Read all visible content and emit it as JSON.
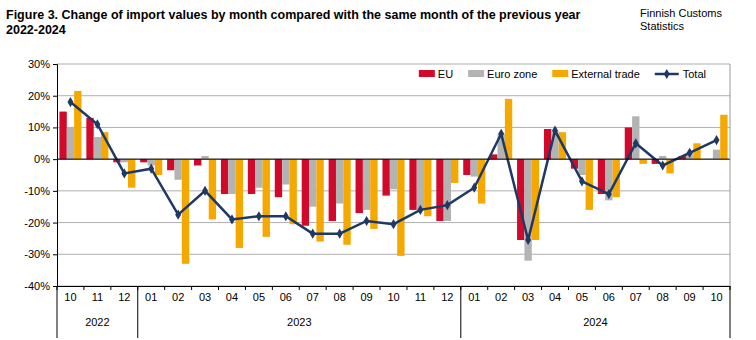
{
  "chart_data": {
    "type": "bar",
    "title": "Figure 3. Change of import values by month compared with the same month of the previous year 2022-2024",
    "source": "Finnish Customs Statistics",
    "categories": [
      "10",
      "11",
      "12",
      "01",
      "02",
      "03",
      "04",
      "05",
      "06",
      "07",
      "08",
      "09",
      "10",
      "11",
      "12",
      "01",
      "02",
      "03",
      "04",
      "05",
      "06",
      "07",
      "08",
      "09",
      "10"
    ],
    "category_years": [
      "2022",
      "2022",
      "2022",
      "2023",
      "2023",
      "2023",
      "2023",
      "2023",
      "2023",
      "2023",
      "2023",
      "2023",
      "2023",
      "2023",
      "2023",
      "2024",
      "2024",
      "2024",
      "2024",
      "2024",
      "2024",
      "2024",
      "2024",
      "2024",
      "2024"
    ],
    "series": [
      {
        "name": "EU",
        "type": "bar",
        "color": "#d10a2c",
        "values": [
          15,
          13,
          -1,
          -1,
          -3.5,
          -2,
          -11,
          -11,
          -12,
          -21,
          -19.5,
          -17,
          -11.5,
          -16,
          -19.5,
          -5,
          1.5,
          -25.5,
          9.5,
          -3,
          -11,
          10,
          -1.5,
          1,
          0
        ]
      },
      {
        "name": "Euro zone",
        "type": "bar",
        "color": "#b3b3b3",
        "values": [
          10,
          7,
          -1,
          -2,
          -6.5,
          1,
          -11,
          -9,
          -8,
          -15,
          -14,
          -16,
          -9.5,
          -16,
          -19.5,
          -5.5,
          8,
          -32,
          9,
          -5,
          -13,
          13.5,
          1,
          2,
          3
        ]
      },
      {
        "name": "External trade",
        "type": "bar",
        "color": "#f5a800",
        "values": [
          21.5,
          8.5,
          -9,
          -5,
          -33,
          -19,
          -28,
          -24.5,
          -20.5,
          -26,
          -27,
          -22,
          -30.5,
          -18,
          -7.5,
          -14,
          19,
          -25.5,
          8.5,
          -16,
          -12,
          -1.5,
          -4.5,
          5,
          14
        ]
      },
      {
        "name": "Total",
        "type": "line",
        "color": "#1f3864",
        "marker": "diamond",
        "values": [
          18,
          11,
          -4.5,
          -3,
          -17.5,
          -10,
          -19,
          -18,
          -18,
          -23.5,
          -23.5,
          -19.5,
          -20.5,
          -16,
          -14.5,
          -9,
          8,
          -25.5,
          9,
          -7,
          -11,
          5,
          -2,
          2,
          6
        ]
      }
    ],
    "ylim": [
      -40,
      30
    ],
    "yticks": [
      {
        "value": -40,
        "label": "-40%"
      },
      {
        "value": -30,
        "label": "-30%"
      },
      {
        "value": -20,
        "label": "-20%"
      },
      {
        "value": -10,
        "label": "-10%"
      },
      {
        "value": 0,
        "label": "0%"
      },
      {
        "value": 10,
        "label": "10%"
      },
      {
        "value": 20,
        "label": "20%"
      },
      {
        "value": 30,
        "label": "30%"
      }
    ],
    "grid": true,
    "legend": "upper right"
  }
}
